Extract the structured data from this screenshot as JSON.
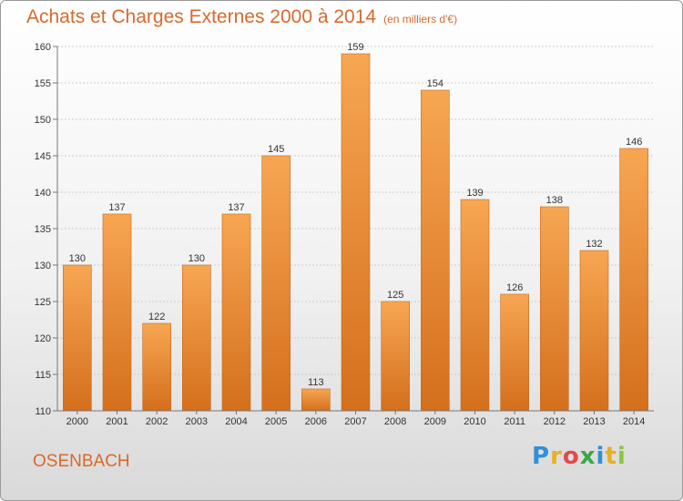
{
  "header": {
    "title": "Achats et Charges Externes 2000 à 2014",
    "unit": "(en milliers d'€)"
  },
  "footer": {
    "commune": "OSENBACH",
    "logo_text": "Proxiti",
    "logo_colors": [
      "#2f8fd8",
      "#e8b020",
      "#e14b4b",
      "#3aa745",
      "#2f8fd8",
      "#e8b020",
      "#8cc63f"
    ]
  },
  "colors": {
    "accent": "#d9692d",
    "bar_top": "#f7a652",
    "bar_bottom": "#d46f1c",
    "grid": "#cccccc",
    "axis": "#777777"
  },
  "chart_data": {
    "type": "bar",
    "title": "Achats et Charges Externes 2000 à 2014",
    "subtitle": "(en milliers d'€)",
    "categories": [
      "2000",
      "2001",
      "2002",
      "2003",
      "2004",
      "2005",
      "2006",
      "2007",
      "2008",
      "2009",
      "2010",
      "2011",
      "2012",
      "2013",
      "2014"
    ],
    "values": [
      130,
      137,
      122,
      130,
      137,
      145,
      113,
      159,
      125,
      154,
      139,
      126,
      138,
      132,
      146
    ],
    "ylim": [
      110,
      160
    ],
    "yticks": [
      110,
      115,
      120,
      125,
      130,
      135,
      140,
      145,
      150,
      155,
      160
    ],
    "grid": true,
    "legend": "none"
  }
}
